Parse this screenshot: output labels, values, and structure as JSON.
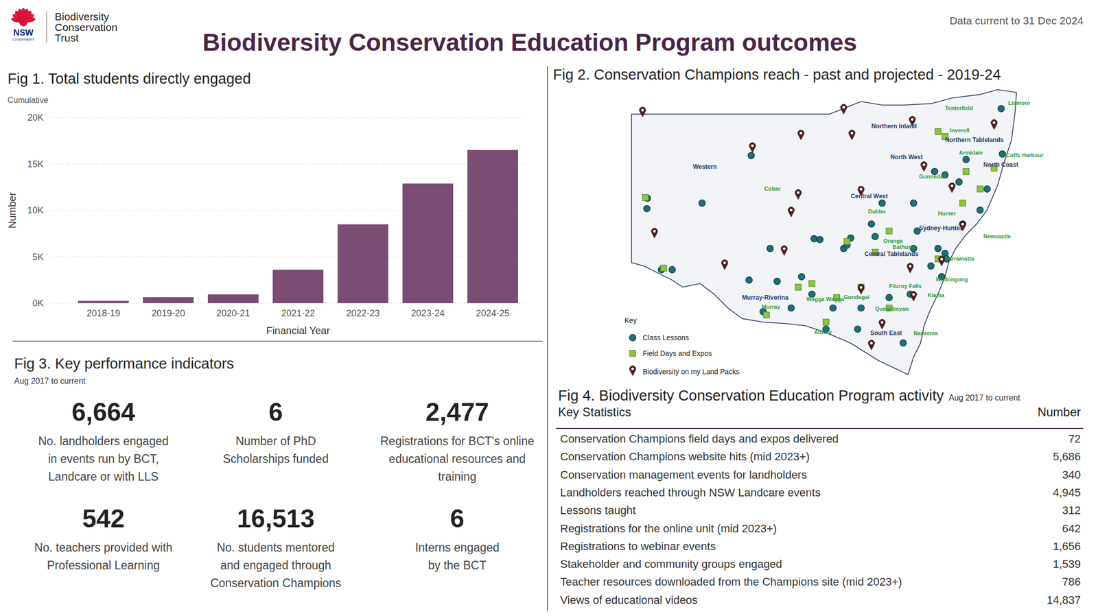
{
  "header": {
    "title": "Biodiversity Conservation Education Program outcomes",
    "date_note": "Data current to 31 Dec 2024",
    "logo": {
      "nsw": "NSW",
      "government": "GOVERNMENT",
      "org": [
        "Biodiversity",
        "Conservation",
        "Trust"
      ]
    }
  },
  "chart_data": {
    "type": "bar",
    "title": "Fig 1. Total students directly engaged",
    "subtitle": "Cumulative",
    "x_label": "Financial Year",
    "y_label": "Number",
    "categories": [
      "2018-19",
      "2019-20",
      "2020-21",
      "2021-22",
      "2022-23",
      "2023-24",
      "2024-25"
    ],
    "values": [
      250,
      650,
      950,
      3600,
      8500,
      12900,
      16513
    ],
    "color": "#7b4d72",
    "ylim": [
      0,
      20000
    ],
    "yticks": [
      {
        "value": 0,
        "label": "0K"
      },
      {
        "value": 5000,
        "label": "5K"
      },
      {
        "value": 10000,
        "label": "10K"
      },
      {
        "value": 15000,
        "label": "15K"
      },
      {
        "value": 20000,
        "label": "20K"
      }
    ],
    "grid": true
  },
  "map": {
    "title": "Fig 2. Conservation Champions reach - past and projected - 2019-24",
    "key_title": "Key",
    "layers": [
      {
        "label": "Class Lessons",
        "marker": "circle",
        "color": "#1f6e78",
        "points": [
          [
            144.92,
            -30.35
          ],
          [
            143.31,
            -31.9
          ],
          [
            141.5,
            -32.08
          ],
          [
            141.52,
            -31.74
          ],
          [
            146.98,
            -33.06
          ],
          [
            147.17,
            -33.09
          ],
          [
            148.18,
            -33.04
          ],
          [
            147.95,
            -33.38
          ],
          [
            148.06,
            -33.27
          ],
          [
            148.98,
            -32.99
          ],
          [
            150.24,
            -33.38
          ],
          [
            151.04,
            -33.38
          ],
          [
            151.27,
            -33.54
          ],
          [
            151.32,
            -33.72
          ],
          [
            150.81,
            -33.95
          ],
          [
            151.16,
            -34.3
          ],
          [
            150.13,
            -34.87
          ],
          [
            149.44,
            -34.98
          ],
          [
            148.52,
            -35.32
          ],
          [
            147.6,
            -35.32
          ],
          [
            146.91,
            -34.87
          ],
          [
            145.77,
            -34.45
          ],
          [
            145.31,
            -35.44
          ],
          [
            146.23,
            -35.32
          ],
          [
            147.37,
            -36.01
          ],
          [
            146.57,
            -34.3
          ],
          [
            144.85,
            -34.41
          ],
          [
            142.33,
            -34.07
          ],
          [
            141.98,
            -34.07
          ],
          [
            150.93,
            -30.87
          ],
          [
            151.27,
            -30.98
          ],
          [
            151.73,
            -31.21
          ],
          [
            151.96,
            -30.48
          ],
          [
            153.11,
            -28.82
          ],
          [
            153.15,
            -30.3
          ],
          [
            152.65,
            -31.44
          ],
          [
            152.42,
            -32.13
          ],
          [
            151.85,
            -32.58
          ],
          [
            149.9,
            -36.46
          ],
          [
            148.41,
            -36.01
          ],
          [
            150.24,
            -31.9
          ],
          [
            149.21,
            -31.9
          ],
          [
            148.86,
            -32.58
          ],
          [
            150.36,
            -32.81
          ],
          [
            145.54,
            -33.38
          ]
        ]
      },
      {
        "label": "Field Days and Expos",
        "marker": "square",
        "color": "#8dc63f",
        "points": [
          [
            141.45,
            -31.72
          ],
          [
            151.04,
            -29.57
          ],
          [
            151.27,
            -29.73
          ],
          [
            151.85,
            -31.9
          ],
          [
            152.88,
            -30.76
          ],
          [
            145.42,
            -35.55
          ],
          [
            146.91,
            -34.52
          ],
          [
            149.44,
            -32.81
          ],
          [
            148.06,
            -33.15
          ],
          [
            149.44,
            -35.32
          ],
          [
            147.37,
            -35.78
          ],
          [
            151.04,
            -33.72
          ],
          [
            152.42,
            -31.44
          ],
          [
            148.98,
            -33.5
          ],
          [
            148.52,
            -34.64
          ],
          [
            147.72,
            -34.98
          ],
          [
            142.05,
            -34.02
          ],
          [
            146.46,
            -34.64
          ],
          [
            151.96,
            -30.87
          ]
        ]
      },
      {
        "label": "Biodiversity on my Land Packs",
        "marker": "pin",
        "color": "#4a1f1f",
        "points": [
          [
            141.36,
            -29.09
          ],
          [
            147.95,
            -29.0
          ],
          [
            148.22,
            -29.84
          ],
          [
            144.96,
            -30.25
          ],
          [
            146.55,
            -29.84
          ],
          [
            150.2,
            -29.39
          ],
          [
            150.58,
            -30.87
          ],
          [
            151.5,
            -31.56
          ],
          [
            148.52,
            -31.67
          ],
          [
            146.46,
            -31.78
          ],
          [
            141.75,
            -33.04
          ],
          [
            144.05,
            -34.07
          ],
          [
            146.0,
            -33.61
          ],
          [
            150.13,
            -34.18
          ],
          [
            151.16,
            -33.95
          ],
          [
            149.21,
            -36.01
          ],
          [
            148.86,
            -36.69
          ],
          [
            150.24,
            -35.1
          ],
          [
            151.85,
            -32.81
          ],
          [
            148.52,
            -34.87
          ],
          [
            152.88,
            -29.5
          ],
          [
            146.23,
            -32.35
          ]
        ]
      }
    ],
    "labels": [
      {
        "text": "Western",
        "kind": "region",
        "lon": 143.01,
        "lat": -30.78
      },
      {
        "text": "Northern Inland",
        "kind": "region",
        "lon": 148.86,
        "lat": -29.46
      },
      {
        "text": "North West",
        "kind": "region",
        "lon": 149.48,
        "lat": -30.46
      },
      {
        "text": "Northern Tablelands",
        "kind": "region",
        "lon": 151.27,
        "lat": -29.91
      },
      {
        "text": "North Coast",
        "kind": "region",
        "lon": 152.53,
        "lat": -30.71
      },
      {
        "text": "Central West",
        "kind": "region",
        "lon": 148.18,
        "lat": -31.74
      },
      {
        "text": "Sydney-Hunter",
        "kind": "region",
        "lon": 150.42,
        "lat": -32.79
      },
      {
        "text": "Central Tablelands",
        "kind": "region",
        "lon": 148.63,
        "lat": -33.63
      },
      {
        "text": "Murray-Riverina",
        "kind": "region",
        "lon": 144.62,
        "lat": -35.05
      },
      {
        "text": "South East",
        "kind": "region",
        "lon": 148.82,
        "lat": -36.21
      },
      {
        "text": "Tenterfield",
        "kind": "town",
        "lon": 151.27,
        "lat": -28.86
      },
      {
        "text": "Lismore",
        "kind": "town",
        "lon": 153.34,
        "lat": -28.7
      },
      {
        "text": "Inverell",
        "kind": "town",
        "lon": 151.43,
        "lat": -29.59
      },
      {
        "text": "Armidale",
        "kind": "town",
        "lon": 151.73,
        "lat": -30.32
      },
      {
        "text": "Coffs Harbour",
        "kind": "town",
        "lon": 153.27,
        "lat": -30.41
      },
      {
        "text": "Gunnedah",
        "kind": "town",
        "lon": 150.42,
        "lat": -31.1
      },
      {
        "text": "Dubbo",
        "kind": "town",
        "lon": 148.75,
        "lat": -32.24
      },
      {
        "text": "Cobar",
        "kind": "town",
        "lon": 145.35,
        "lat": -31.49
      },
      {
        "text": "Newcastle",
        "kind": "town",
        "lon": 152.53,
        "lat": -33.04
      },
      {
        "text": "Hunter",
        "kind": "town",
        "lon": 151.04,
        "lat": -32.31
      },
      {
        "text": "Orange",
        "kind": "town",
        "lon": 149.25,
        "lat": -33.2
      },
      {
        "text": "Bathurst",
        "kind": "town",
        "lon": 149.55,
        "lat": -33.4
      },
      {
        "text": "Parramatta",
        "kind": "town",
        "lon": 151.27,
        "lat": -33.77
      },
      {
        "text": "Wollongong",
        "kind": "town",
        "lon": 150.97,
        "lat": -34.45
      },
      {
        "text": "Kiama",
        "kind": "town",
        "lon": 150.7,
        "lat": -34.96
      },
      {
        "text": "Fitzroy Falls",
        "kind": "town",
        "lon": 149.44,
        "lat": -34.66
      },
      {
        "text": "Queanbeyan",
        "kind": "town",
        "lon": 148.98,
        "lat": -35.41
      },
      {
        "text": "Gundagai",
        "kind": "town",
        "lon": 147.95,
        "lat": -35.03
      },
      {
        "text": "Wagga Wagga",
        "kind": "town",
        "lon": 146.73,
        "lat": -35.09
      },
      {
        "text": "Murray",
        "kind": "town",
        "lon": 145.26,
        "lat": -35.35
      },
      {
        "text": "Albury",
        "kind": "town",
        "lon": 146.98,
        "lat": -36.17
      },
      {
        "text": "Narooma",
        "kind": "town",
        "lon": 150.24,
        "lat": -36.21
      }
    ]
  },
  "kpis": {
    "title": "Fig 3. Key performance indicators",
    "subtitle": "Aug 2017 to current",
    "items": [
      {
        "value": "6,664",
        "label": [
          "No. landholders engaged",
          "in events run by BCT,",
          "Landcare or with LLS"
        ]
      },
      {
        "value": "6",
        "label": [
          "Number of PhD",
          "Scholarships funded"
        ]
      },
      {
        "value": "2,477",
        "label": [
          "Registrations for BCT's online",
          "educational resources and",
          "training"
        ]
      },
      {
        "value": "542",
        "label": [
          "No. teachers provided with",
          "Professional Learning"
        ]
      },
      {
        "value": "16,513",
        "label": [
          "No. students mentored",
          "and engaged through",
          "Conservation Champions"
        ]
      },
      {
        "value": "6",
        "label": [
          "Interns engaged",
          "by the BCT"
        ]
      }
    ]
  },
  "activity": {
    "title": "Fig 4. Biodiversity Conservation Education Program activity",
    "subtitle": "Aug 2017 to current",
    "headers": [
      "Key Statistics",
      "Number"
    ],
    "rows": [
      [
        "Conservation Champions field days and expos delivered",
        "72"
      ],
      [
        "Conservation Champions website hits (mid 2023+)",
        "5,686"
      ],
      [
        "Conservation management events for landholders",
        "340"
      ],
      [
        "Landholders reached through NSW Landcare events",
        "4,945"
      ],
      [
        "Lessons taught",
        "312"
      ],
      [
        "Registrations for the online unit (mid 2023+)",
        "642"
      ],
      [
        "Registrations to webinar events",
        "1,656"
      ],
      [
        "Stakeholder and community groups engaged",
        "1,539"
      ],
      [
        "Teacher resources downloaded from the Champions site (mid 2023+)",
        "786"
      ],
      [
        "Views of educational videos",
        "14,837"
      ]
    ]
  }
}
